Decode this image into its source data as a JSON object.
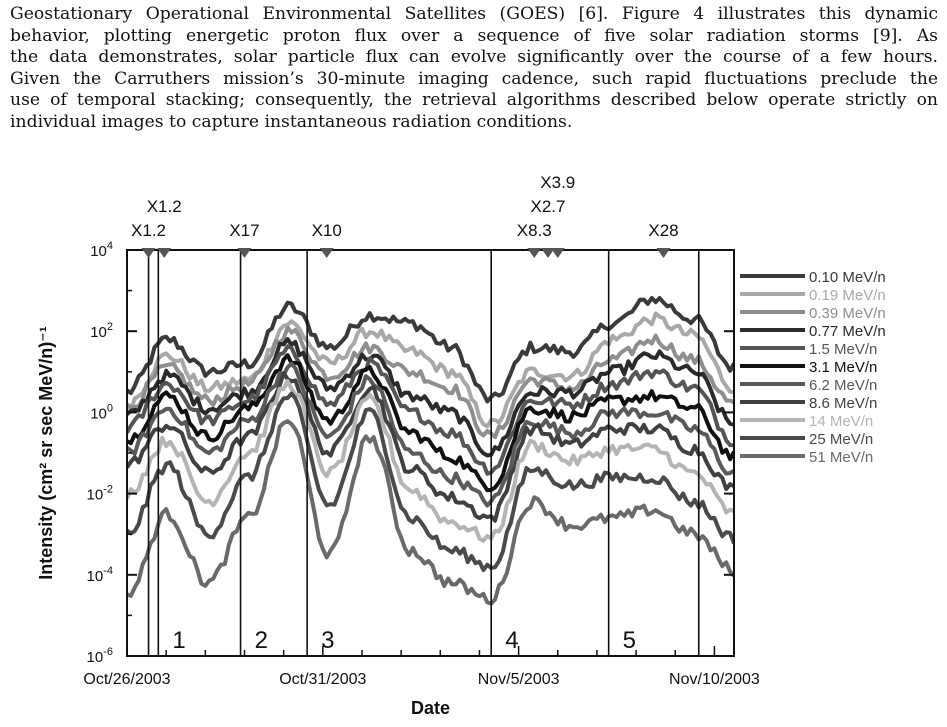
{
  "paragraph": {
    "lines": [
      "Geostationary Operational Environmental Satellites (GOES) [6]. Figure 4 illustrates this dynamic",
      "behavior, plotting energetic proton flux over a sequence of five solar radiation storms [9].  As",
      "the data demonstrates, solar particle flux can evolve significantly over the course of a few hours.",
      "Given the Carruthers mission’s 30-minute imaging cadence, such rapid fluctuations preclude the",
      "use of temporal stacking; consequently, the retrieval algorithms described below operate strictly on",
      "individual images to capture instantaneous radiation conditions."
    ]
  },
  "chart_data": {
    "type": "line",
    "xlabel": "Date",
    "ylabel": "Intensity (cm² sr sec MeV/n)⁻¹",
    "x_unit": "days since Oct/26/2003",
    "xlim": [
      0,
      15.5
    ],
    "ylim": [
      1e-06,
      10000.0
    ],
    "yscale": "log",
    "x_ticks": [
      {
        "x": 0,
        "label": "Oct/26/2003"
      },
      {
        "x": 5,
        "label": "Oct/31/2003"
      },
      {
        "x": 10,
        "label": "Nov/5/2003"
      },
      {
        "x": 15,
        "label": "Nov/10/2003"
      }
    ],
    "y_ticks": [
      {
        "exp": 4,
        "label": "10",
        "sup": "4"
      },
      {
        "exp": 2,
        "label": "10",
        "sup": "2"
      },
      {
        "exp": 0,
        "label": "10",
        "sup": "0"
      },
      {
        "exp": -2,
        "label": "10",
        "sup": "-2"
      },
      {
        "exp": -4,
        "label": "10",
        "sup": "-4"
      },
      {
        "exp": -6,
        "label": "10",
        "sup": "-6"
      }
    ],
    "flares": [
      {
        "x": 0.55,
        "label": "X1.2",
        "row": 1
      },
      {
        "x": 0.95,
        "label": "X1.2",
        "row": 0
      },
      {
        "x": 3.0,
        "label": "X17",
        "row": 1
      },
      {
        "x": 5.1,
        "label": "X10",
        "row": 1
      },
      {
        "x": 10.4,
        "label": "X8.3",
        "row": 1
      },
      {
        "x": 10.75,
        "label": "X2.7",
        "row": 0
      },
      {
        "x": 11.0,
        "label": "X3.9",
        "row": -1
      },
      {
        "x": 13.7,
        "label": "X28",
        "row": 1
      }
    ],
    "storms": [
      {
        "label": "1",
        "start": 0.8,
        "end": 2.9
      },
      {
        "label": "2",
        "start": 2.9,
        "end": 4.6
      },
      {
        "label": "3",
        "start": 4.6,
        "end": 9.3
      },
      {
        "label": "4",
        "start": 9.3,
        "end": 12.3
      },
      {
        "label": "5",
        "start": 12.3,
        "end": 15.5
      }
    ],
    "storm_boundaries": [
      0.55,
      0.8,
      2.9,
      4.6,
      9.3,
      12.3,
      14.6
    ],
    "series": [
      {
        "name": "0.10 MeV/n",
        "color": "#3a3a3a",
        "values": [
          0.5,
          1.8,
          1.0,
          1.2,
          2.6,
          1.6,
          2.4,
          2.2,
          1.6,
          0.3,
          1.6,
          1.5,
          2.2,
          2.8,
          2.3,
          1.1
        ]
      },
      {
        "name": "0.19 MeV/n",
        "color": "#a8a8a8",
        "values": [
          0.2,
          1.4,
          0.6,
          0.8,
          2.2,
          1.2,
          2.0,
          1.5,
          1.0,
          -0.3,
          1.0,
          0.9,
          1.8,
          2.3,
          1.9,
          0.6
        ]
      },
      {
        "name": "0.39 MeV/n",
        "color": "#8e8e8e",
        "values": [
          0.1,
          1.1,
          0.3,
          0.7,
          2.0,
          0.9,
          1.6,
          1.0,
          0.6,
          -0.6,
          0.8,
          0.6,
          1.3,
          1.8,
          1.3,
          0.2
        ]
      },
      {
        "name": "0.77 MeV/n",
        "color": "#2a2a2a",
        "values": [
          -0.1,
          0.9,
          0.1,
          0.5,
          1.7,
          0.6,
          1.4,
          0.4,
          0.0,
          -1.0,
          0.5,
          0.5,
          1.0,
          1.4,
          1.0,
          -0.3
        ]
      },
      {
        "name": "1.5 MeV/n",
        "color": "#555555",
        "values": [
          -0.4,
          0.7,
          -0.2,
          0.3,
          1.5,
          0.2,
          1.2,
          0.0,
          -0.5,
          -1.4,
          0.3,
          0.2,
          0.7,
          1.0,
          0.6,
          -0.7
        ]
      },
      {
        "name": "3.1 MeV/n",
        "color": "#101010",
        "values": [
          -0.7,
          0.4,
          -0.6,
          0.1,
          1.3,
          -0.2,
          1.0,
          -0.5,
          -1.1,
          -1.8,
          0.1,
          -0.1,
          0.3,
          0.4,
          0.1,
          -1.1
        ]
      },
      {
        "name": "6.2 MeV/n",
        "color": "#5a5a5a",
        "values": [
          -1.0,
          0.1,
          -1.0,
          -0.2,
          1.1,
          -0.6,
          0.8,
          -1.0,
          -1.6,
          -2.2,
          -0.2,
          -0.5,
          0.0,
          0.0,
          -0.4,
          -1.5
        ]
      },
      {
        "name": "8.6 MeV/n",
        "color": "#404040",
        "values": [
          -1.3,
          -0.3,
          -1.5,
          -0.6,
          0.9,
          -1.0,
          0.6,
          -1.4,
          -2.1,
          -2.6,
          -0.4,
          -0.8,
          -0.4,
          -0.4,
          -0.9,
          -1.9
        ]
      },
      {
        "name": "14 MeV/n",
        "color": "#b4b4b4",
        "values": [
          -2.0,
          -0.7,
          -2.2,
          -1.0,
          0.7,
          -1.5,
          0.3,
          -1.9,
          -2.7,
          -3.1,
          -0.8,
          -1.2,
          -0.9,
          -0.9,
          -1.5,
          -2.5
        ]
      },
      {
        "name": "25 MeV/n",
        "color": "#4a4a4a",
        "values": [
          -3.0,
          -1.3,
          -3.0,
          -1.6,
          0.4,
          -2.3,
          0.0,
          -2.6,
          -3.4,
          -3.8,
          -1.4,
          -1.8,
          -1.6,
          -1.6,
          -2.2,
          -3.1
        ]
      },
      {
        "name": "51 MeV/n",
        "color": "#6a6a6a",
        "values": [
          -4.5,
          -2.5,
          -4.2,
          -2.6,
          -0.2,
          -3.5,
          -0.6,
          -3.4,
          -4.2,
          -4.6,
          -2.2,
          -2.8,
          -2.6,
          -2.4,
          -3.0,
          -3.9
        ]
      }
    ],
    "legend_position": "right",
    "grid": false
  }
}
